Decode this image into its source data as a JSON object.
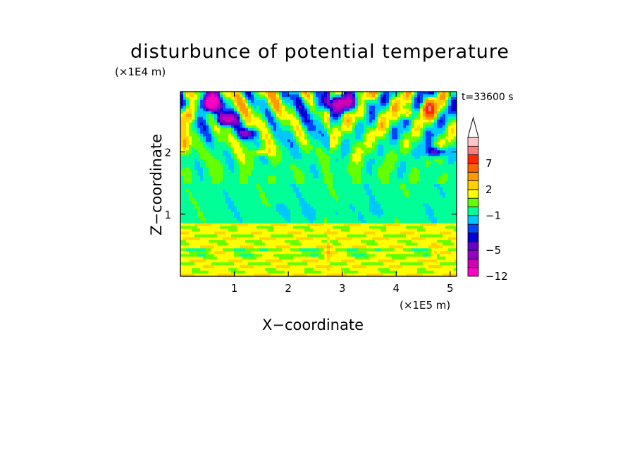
{
  "chart_data": {
    "type": "heatmap",
    "title": "disturbunce of potential temperature",
    "xlabel": "X−coordinate",
    "ylabel": "Z−coordinate",
    "x_unit": "(×1E5 m)",
    "z_unit": "(×1E4 m)",
    "time_label": "t=33600 s",
    "xlim": [
      0,
      5.12
    ],
    "ylim": [
      0,
      2.97
    ],
    "x_ticks": [
      {
        "value": 1,
        "label": "1"
      },
      {
        "value": 2,
        "label": "2"
      },
      {
        "value": 3,
        "label": "3"
      },
      {
        "value": 4,
        "label": "4"
      },
      {
        "value": 5,
        "label": "5"
      }
    ],
    "y_ticks": [
      {
        "value": 1,
        "label": "1"
      },
      {
        "value": 2,
        "label": "2"
      }
    ],
    "colorbar": {
      "levels": [
        -12,
        -9,
        -7,
        -5,
        -4,
        -3,
        -2,
        -1,
        0,
        1,
        2,
        3,
        5,
        7,
        9,
        12
      ],
      "colors": [
        "#ff00c8",
        "#d200b4",
        "#9600c8",
        "#6400c8",
        "#0000d2",
        "#0046ff",
        "#00c8ff",
        "#00ff96",
        "#64ff00",
        "#ffff00",
        "#ffd200",
        "#ff9b00",
        "#ff6400",
        "#ff2800",
        "#ff7d7d",
        "#ffc8c8"
      ],
      "tick_labels": [
        {
          "level": -12,
          "label": "−12"
        },
        {
          "level": -5,
          "label": "−5"
        },
        {
          "level": -1,
          "label": "−1"
        },
        {
          "level": 2,
          "label": "2"
        },
        {
          "level": 7,
          "label": "7"
        }
      ],
      "extend": "max"
    },
    "features": [
      {
        "x": 0.55,
        "z": 2.75,
        "value": -12
      },
      {
        "x": 0.8,
        "z": 2.55,
        "value": -7
      },
      {
        "x": 1.2,
        "z": 2.3,
        "value": -5
      },
      {
        "x": 2.8,
        "z": 2.7,
        "value": -5
      },
      {
        "x": 3.3,
        "z": 2.75,
        "value": -5
      },
      {
        "x": 4.8,
        "z": 2.0,
        "value": -5
      },
      {
        "x": 4.6,
        "z": 2.7,
        "value": 7
      },
      {
        "x": 4.2,
        "z": 2.6,
        "value": 5
      },
      {
        "x": 0.2,
        "z": 2.6,
        "value": 5
      },
      {
        "x": 2.5,
        "z": 1.1,
        "value": -1
      }
    ]
  }
}
